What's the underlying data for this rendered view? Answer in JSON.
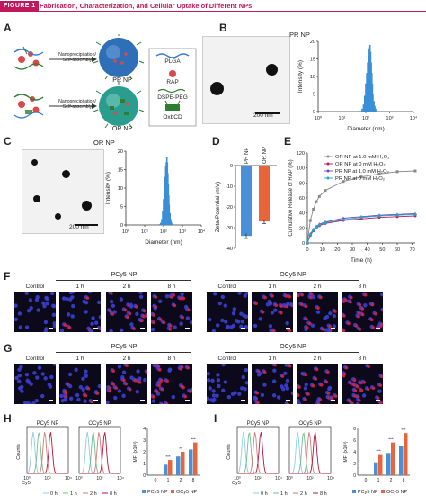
{
  "header": {
    "figure_tag": "FIGURE 1",
    "title": "Fabrication, Characterization, and Cellular Uptake of Different NPs"
  },
  "panels": {
    "A": "A",
    "B": "B",
    "C": "C",
    "D": "D",
    "E": "E",
    "F": "F",
    "G": "G",
    "H": "H",
    "I": "I"
  },
  "panelA": {
    "arrow_top": "Nanoprecipitation/\nSelf-assembly",
    "arrow_bottom": "Nanoprecipitation/\nSelf-assembly",
    "pr_np": "PR NP",
    "or_np": "OR NP",
    "legend": [
      "PLGA",
      "RAP",
      "DSPE-PEG",
      "OxbCD"
    ]
  },
  "panelB": {
    "title": "PR NP",
    "scale": "200 nm",
    "chart_data": {
      "type": "bar",
      "xlabel": "Diameter (nm)",
      "ylabel": "Intensity (%)",
      "yticks": [
        "0",
        "5",
        "10",
        "15",
        "20"
      ],
      "xticks": [
        "10⁰",
        "10¹",
        "10²",
        "10³",
        "10⁴"
      ],
      "ylim": [
        0,
        20
      ],
      "x": [
        60,
        70,
        80,
        90,
        100,
        110,
        120,
        130,
        140,
        150,
        160,
        170,
        180,
        190,
        200,
        220,
        240,
        260,
        280,
        300
      ],
      "values": [
        0.2,
        0.8,
        2,
        4.5,
        8,
        11,
        14,
        16,
        18,
        19,
        17,
        14,
        11,
        8,
        5,
        3,
        1.6,
        0.8,
        0.3,
        0.1
      ]
    }
  },
  "panelC": {
    "title": "OR NP",
    "scale": "200 nm",
    "chart_data": {
      "type": "bar",
      "xlabel": "Diameter (nm)",
      "ylabel": "Intensity (%)",
      "yticks": [
        "0",
        "5",
        "10",
        "15",
        "20"
      ],
      "xticks": [
        "10⁰",
        "10¹",
        "10²",
        "10³",
        "10⁴"
      ],
      "ylim": [
        0,
        20
      ],
      "x": [
        60,
        70,
        80,
        90,
        100,
        110,
        120,
        130,
        140,
        150,
        160,
        170,
        180,
        190,
        200,
        220,
        240,
        260,
        280,
        300
      ],
      "values": [
        0.2,
        0.6,
        1.6,
        3.8,
        7,
        10,
        13,
        16,
        17,
        18.5,
        17,
        14,
        11,
        8,
        5.5,
        3.2,
        1.6,
        0.8,
        0.3,
        0.1
      ]
    }
  },
  "panelD": {
    "chart_data": {
      "type": "bar",
      "categories": [
        "PR NP",
        "OR NP"
      ],
      "values": [
        -34,
        -27
      ],
      "errors": [
        1.2,
        1.0
      ],
      "ylabel": "Zeta-Potential (mV)",
      "yticks": [
        "0",
        "-10",
        "-20",
        "-30",
        "-40"
      ],
      "ylim": [
        -40,
        0
      ],
      "colors": [
        "#4a90d9",
        "#e8643a"
      ]
    }
  },
  "panelE": {
    "chart_data": {
      "type": "line",
      "xlabel": "Time (h)",
      "ylabel": "Cumulative Release of RAP (%)",
      "xticks": [
        "0",
        "10",
        "20",
        "30",
        "40",
        "50",
        "60",
        "70"
      ],
      "yticks": [
        "0",
        "20",
        "40",
        "60",
        "80",
        "100",
        "120"
      ],
      "xlim": [
        0,
        72
      ],
      "ylim": [
        0,
        120
      ],
      "x": [
        0,
        2,
        4,
        6,
        8,
        12,
        24,
        36,
        48,
        60,
        72
      ],
      "series": [
        {
          "name": "OR NP at 1.0 mM H₂O₂",
          "color": "#888888",
          "marker": "square",
          "values": [
            0,
            30,
            45,
            55,
            62,
            70,
            82,
            88,
            92,
            95,
            96
          ]
        },
        {
          "name": "OR NP at 0 mM H₂O₂",
          "color": "#c2185b",
          "marker": "circle",
          "values": [
            0,
            10,
            16,
            20,
            23,
            26,
            30,
            32,
            34,
            35,
            36
          ]
        },
        {
          "name": "PR NP at 1.0 mM H₂O₂",
          "color": "#6b4bb6",
          "marker": "triangle",
          "values": [
            0,
            12,
            18,
            22,
            25,
            28,
            33,
            35,
            37,
            38,
            39
          ]
        },
        {
          "name": "PR NP at 0 mM H₂O₂",
          "color": "#22a7c9",
          "marker": "diamond",
          "values": [
            0,
            11,
            17,
            21,
            24,
            27,
            31,
            34,
            36,
            37,
            38
          ]
        }
      ]
    }
  },
  "panelF": {
    "group1": "PCy5 NP",
    "group2": "OCy5 NP",
    "labels": [
      "Control",
      "1 h",
      "2 h",
      "8 h",
      "Control",
      "1 h",
      "2 h",
      "8 h"
    ]
  },
  "panelG": {
    "group1": "PCy5 NP",
    "group2": "OCy5 NP",
    "labels": [
      "Control",
      "1 h",
      "2 h",
      "8 h",
      "Control",
      "1 h",
      "2 h",
      "8 h"
    ]
  },
  "panelH": {
    "hist1_title": "PCy5 NP",
    "hist2_title": "OCy5 NP",
    "xlabel": "Cy5",
    "ylabel": "Counts",
    "xticks": [
      "10⁰",
      "10²",
      "10⁴"
    ],
    "legend": [
      "0 h",
      "1 h",
      "2 h",
      "8 h"
    ],
    "legend_colors": [
      "#8ecde8",
      "#6fbf8a",
      "#d77a7a",
      "#b3173b"
    ],
    "chart_data": {
      "type": "bar",
      "categories": [
        "0",
        "1",
        "2",
        "8"
      ],
      "ylabel": "MFI (x10³)",
      "yticks": [
        "0",
        "1",
        "2",
        "3",
        "4"
      ],
      "ylim": [
        0,
        4
      ],
      "series": [
        {
          "name": "PCy5 NP",
          "color": "#4a90d9",
          "values": [
            0.05,
            0.9,
            1.6,
            2.2
          ]
        },
        {
          "name": "OCy5 NP",
          "color": "#e8643a",
          "values": [
            0.05,
            1.3,
            2.0,
            2.8
          ]
        }
      ],
      "sig": [
        "***",
        "**",
        "***"
      ],
      "legend_labels": [
        "PCy5 NP",
        "OCy5 NP"
      ]
    }
  },
  "panelI": {
    "hist1_title": "PCy5 NP",
    "hist2_title": "OCy5 NP",
    "xlabel": "Cy5",
    "ylabel": "Counts",
    "xticks": [
      "10⁰",
      "10²",
      "10⁴"
    ],
    "legend": [
      "0 h",
      "1 h",
      "2 h",
      "8 h"
    ],
    "legend_colors": [
      "#8ecde8",
      "#6fbf8a",
      "#d77a7a",
      "#b3173b"
    ],
    "chart_data": {
      "type": "bar",
      "categories": [
        "0",
        "1",
        "2",
        "8"
      ],
      "ylabel": "MFI (x10³)",
      "yticks": [
        "0",
        "2",
        "4",
        "6",
        "8"
      ],
      "ylim": [
        0,
        8
      ],
      "series": [
        {
          "name": "PCy5 NP",
          "color": "#4a90d9",
          "values": [
            0.1,
            2.2,
            3.8,
            5.0
          ]
        },
        {
          "name": "OCy5 NP",
          "color": "#e8643a",
          "values": [
            0.1,
            3.6,
            5.6,
            7.2
          ]
        }
      ],
      "sig": [
        "***",
        "***",
        "***"
      ],
      "legend_labels": [
        "PCy5 NP",
        "OCy5 NP"
      ]
    }
  }
}
